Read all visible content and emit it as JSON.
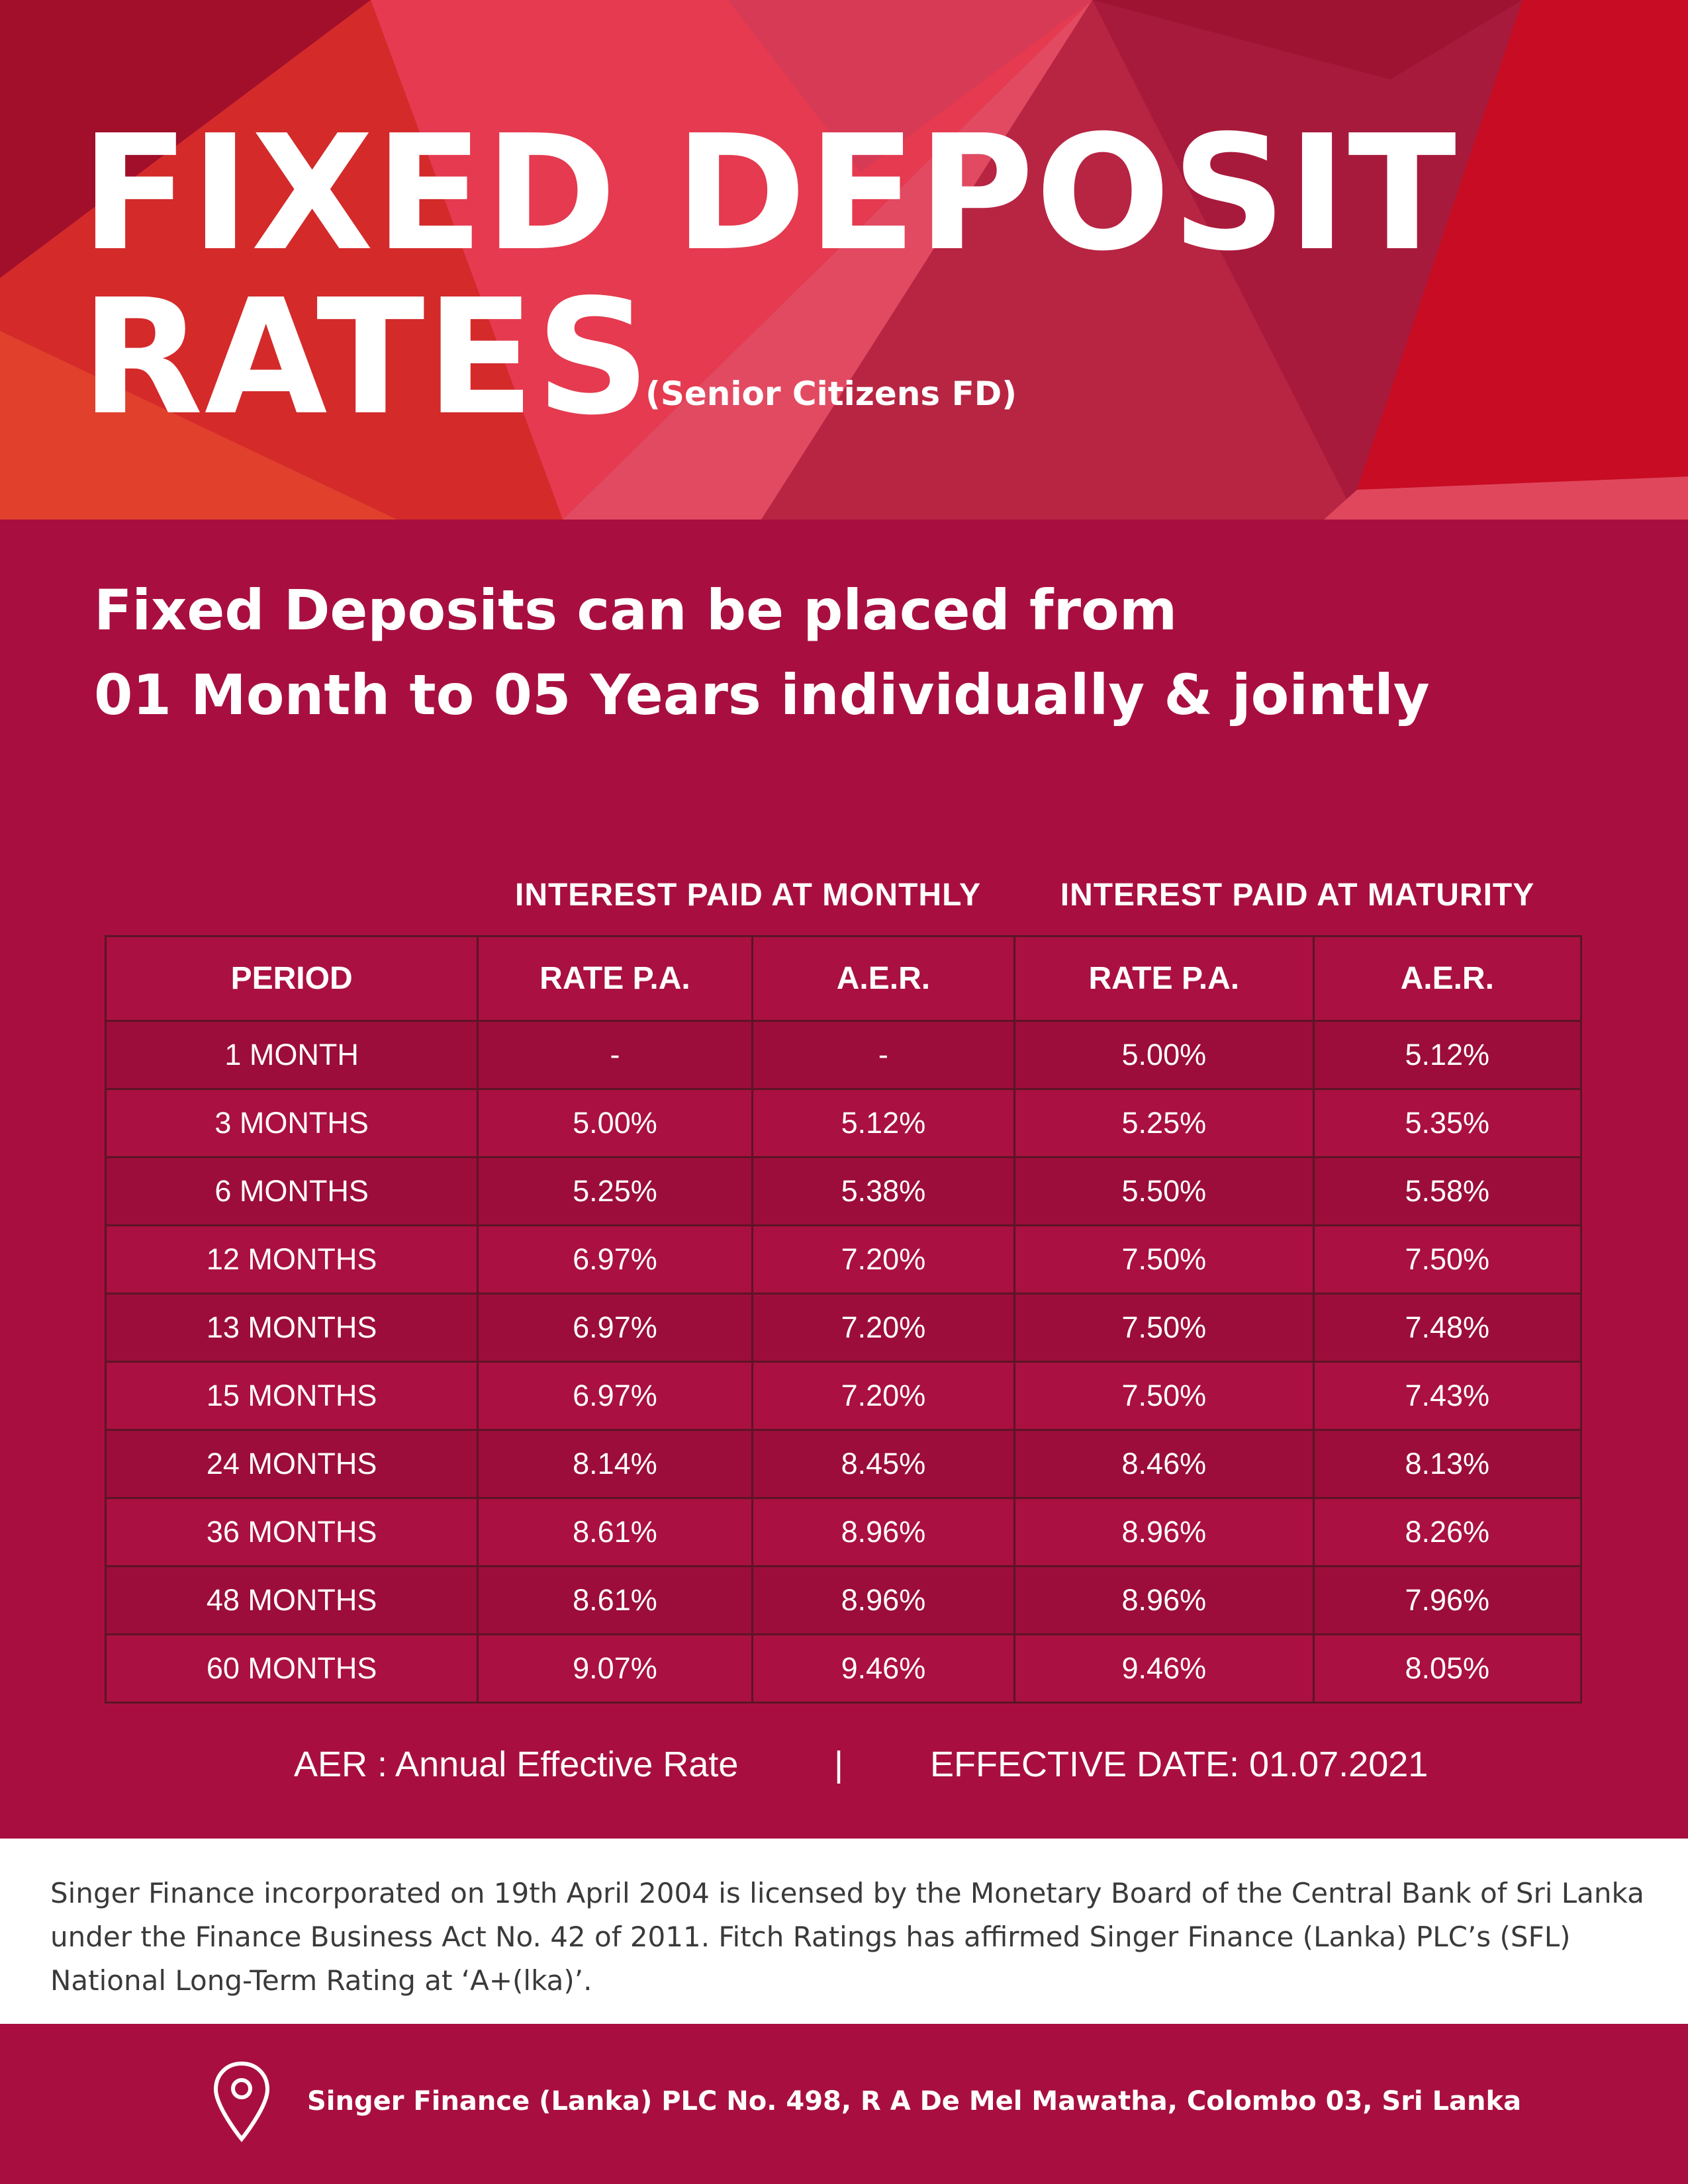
{
  "header": {
    "title_line1": "FIXED DEPOSIT",
    "title_line2": "RATES",
    "subtitle": "(Senior Citizens FD)"
  },
  "lead": {
    "line1": "Fixed Deposits can be placed from",
    "line2": "01 Month to 05 Years individually & jointly"
  },
  "table": {
    "group_headers": {
      "monthly": "INTEREST PAID AT MONTHLY",
      "maturity": "INTEREST PAID AT MATURITY"
    },
    "columns": [
      "PERIOD",
      "RATE P.A.",
      "A.E.R.",
      "RATE P.A.",
      "A.E.R."
    ],
    "rows": [
      [
        "1 MONTH",
        "-",
        "-",
        "5.00%",
        "5.12%"
      ],
      [
        "3 MONTHS",
        "5.00%",
        "5.12%",
        "5.25%",
        "5.35%"
      ],
      [
        "6 MONTHS",
        "5.25%",
        "5.38%",
        "5.50%",
        "5.58%"
      ],
      [
        "12 MONTHS",
        "6.97%",
        "7.20%",
        "7.50%",
        "7.50%"
      ],
      [
        "13 MONTHS",
        "6.97%",
        "7.20%",
        "7.50%",
        "7.48%"
      ],
      [
        "15 MONTHS",
        "6.97%",
        "7.20%",
        "7.50%",
        "7.43%"
      ],
      [
        "24 MONTHS",
        "8.14%",
        "8.45%",
        "8.46%",
        "8.13%"
      ],
      [
        "36 MONTHS",
        "8.61%",
        "8.96%",
        "8.96%",
        "8.26%"
      ],
      [
        "48 MONTHS",
        "8.61%",
        "8.96%",
        "8.96%",
        "7.96%"
      ],
      [
        "60 MONTHS",
        "9.07%",
        "9.46%",
        "9.46%",
        "8.05%"
      ]
    ]
  },
  "footnote": {
    "aer": "AER : Annual Effective Rate",
    "separator": "|",
    "effective_date": "EFFECTIVE DATE: 01.07.2021"
  },
  "disclaimer": "Singer Finance incorporated on 19th April 2004 is licensed by the Monetary Board of the Central Bank of Sri Lanka under the Finance Business Act No. 42 of 2011. Fitch Ratings has affirmed Singer Finance (Lanka) PLC’s (SFL) National Long-Term Rating at ‘A+(lka)’.",
  "footer": {
    "address": "Singer Finance (Lanka) PLC No. 498, R A De Mel Mawatha, Colombo 03, Sri Lanka",
    "icon": "location-pin-icon"
  },
  "colors": {
    "primary": "#a80f40",
    "row_dark": "#9c0d3b",
    "row_light": "#aa1042",
    "grid": "#5c1426",
    "hero_red": "#c0102a",
    "text": "#ffffff"
  }
}
